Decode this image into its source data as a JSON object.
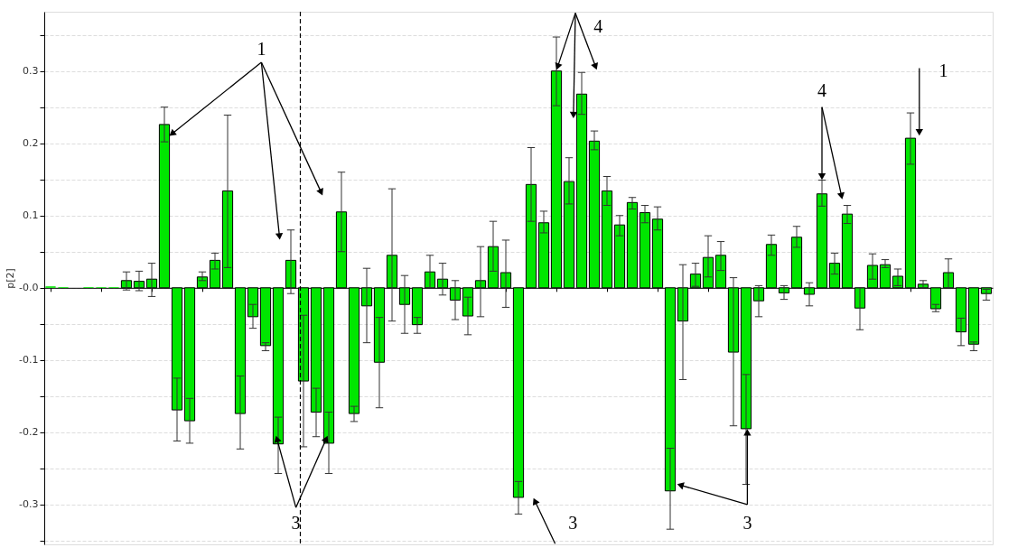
{
  "chart_data": {
    "type": "bar",
    "ylabel": "p[2]",
    "categories": [
      null,
      null,
      null,
      null,
      null,
      null,
      null,
      null,
      null,
      null,
      null,
      null,
      null,
      null,
      null,
      null,
      null,
      null,
      null,
      null,
      null,
      null,
      null,
      null,
      null,
      null,
      null,
      null,
      null,
      null,
      null,
      null,
      null,
      null,
      null,
      null,
      null,
      null,
      null,
      null,
      null,
      null,
      null,
      null,
      null,
      null,
      null,
      null,
      null,
      null,
      null,
      null,
      null,
      null,
      null,
      null,
      null,
      null,
      null,
      null,
      null,
      null,
      null,
      null,
      null,
      null,
      null,
      null,
      null,
      null,
      null,
      null,
      null,
      null,
      null
    ],
    "series": [
      {
        "color": "#00e600",
        "values": [
          0.002,
          0.001,
          0.0,
          0.001,
          0.001,
          0.001,
          0.01,
          0.009,
          0.012,
          0.226,
          -0.169,
          -0.184,
          0.015,
          0.038,
          0.134,
          -0.174,
          -0.04,
          -0.08,
          -0.216,
          0.038,
          -0.129,
          -0.172,
          -0.215,
          0.105,
          -0.174,
          -0.025,
          -0.103,
          0.045,
          -0.023,
          -0.051,
          0.022,
          0.012,
          -0.017,
          -0.039,
          0.01,
          0.057,
          0.021,
          -0.29,
          0.143,
          0.09,
          0.3,
          0.147,
          0.268,
          0.203,
          0.134,
          0.087,
          0.118,
          0.104,
          0.095,
          -0.281,
          -0.046,
          0.019,
          0.042,
          0.045,
          -0.089,
          -0.195,
          -0.018,
          0.06,
          -0.007,
          0.07,
          -0.009,
          0.13,
          0.034,
          0.102,
          -0.028,
          0.031,
          0.032,
          0.016,
          0.207,
          0.005,
          -0.029,
          0.021,
          -0.061,
          -0.078,
          -0.008
        ],
        "errors": [
          null,
          null,
          null,
          null,
          null,
          null,
          [
            -0.003,
            0.022
          ],
          [
            -0.004,
            0.023
          ],
          [
            -0.012,
            0.034
          ],
          [
            0.202,
            0.25
          ],
          [
            -0.212,
            -0.125
          ],
          [
            -0.215,
            -0.153
          ],
          [
            0.01,
            0.022
          ],
          [
            0.026,
            0.048
          ],
          [
            0.028,
            0.239
          ],
          [
            -0.223,
            -0.122
          ],
          [
            -0.056,
            -0.023
          ],
          [
            -0.087,
            -0.076
          ],
          [
            -0.257,
            -0.179
          ],
          [
            -0.008,
            0.08
          ],
          [
            -0.22,
            -0.038
          ],
          [
            -0.206,
            -0.139
          ],
          [
            -0.257,
            -0.172
          ],
          [
            0.05,
            0.16
          ],
          [
            -0.185,
            -0.164
          ],
          [
            -0.076,
            0.027
          ],
          [
            -0.166,
            -0.041
          ],
          [
            -0.046,
            0.137
          ],
          [
            -0.063,
            0.017
          ],
          [
            -0.063,
            -0.041
          ],
          [
            0.0,
            0.045
          ],
          [
            -0.01,
            0.034
          ],
          [
            -0.044,
            0.01
          ],
          [
            -0.065,
            -0.013
          ],
          [
            -0.04,
            0.057
          ],
          [
            0.023,
            0.092
          ],
          [
            -0.027,
            0.066
          ],
          [
            -0.313,
            -0.268
          ],
          [
            0.092,
            0.194
          ],
          [
            0.076,
            0.106
          ],
          [
            0.252,
            0.347
          ],
          [
            0.116,
            0.18
          ],
          [
            0.24,
            0.298
          ],
          [
            0.191,
            0.217
          ],
          [
            0.114,
            0.154
          ],
          [
            0.072,
            0.1
          ],
          [
            0.109,
            0.125
          ],
          [
            0.09,
            0.114
          ],
          [
            0.08,
            0.112
          ],
          [
            -0.334,
            -0.222
          ],
          [
            -0.127,
            0.032
          ],
          [
            0.002,
            0.034
          ],
          [
            0.015,
            0.072
          ],
          [
            0.024,
            0.064
          ],
          [
            -0.191,
            0.014
          ],
          [
            -0.272,
            -0.12
          ],
          [
            -0.04,
            0.003
          ],
          [
            0.045,
            0.073
          ],
          [
            -0.016,
            0.003
          ],
          [
            0.056,
            0.085
          ],
          [
            -0.025,
            0.007
          ],
          [
            0.113,
            0.149
          ],
          [
            0.019,
            0.048
          ],
          [
            0.089,
            0.114
          ],
          [
            -0.058,
            0.0
          ],
          [
            0.012,
            0.047
          ],
          [
            0.028,
            0.039
          ],
          [
            0.003,
            0.026
          ],
          [
            0.171,
            0.242
          ],
          [
            0.0,
            0.01
          ],
          [
            -0.033,
            -0.023
          ],
          [
            0.0,
            0.04
          ],
          [
            -0.08,
            -0.042
          ],
          [
            -0.087,
            -0.075
          ],
          [
            -0.017,
            -0.002
          ]
        ]
      }
    ],
    "ylim": [
      -0.355,
      0.382
    ],
    "yticks": [
      {
        "value": -0.35,
        "label": null
      },
      {
        "value": -0.3,
        "label": "-0.3"
      },
      {
        "value": -0.25,
        "label": null
      },
      {
        "value": -0.2,
        "label": "-0.2"
      },
      {
        "value": -0.15,
        "label": null
      },
      {
        "value": -0.1,
        "label": "-0.1"
      },
      {
        "value": -0.05,
        "label": null
      },
      {
        "value": 0,
        "label": "-0.0"
      },
      {
        "value": 0.05,
        "label": null
      },
      {
        "value": 0.1,
        "label": "0.1"
      },
      {
        "value": 0.15,
        "label": null
      },
      {
        "value": 0.2,
        "label": "0.2"
      },
      {
        "value": 0.25,
        "label": null
      },
      {
        "value": 0.3,
        "label": "0.3"
      },
      {
        "value": 0.35,
        "label": null
      }
    ],
    "grid": "y",
    "tick_labels": "y",
    "annotations": [
      "1",
      "4",
      "4",
      "1",
      "3",
      "3",
      "3"
    ]
  }
}
